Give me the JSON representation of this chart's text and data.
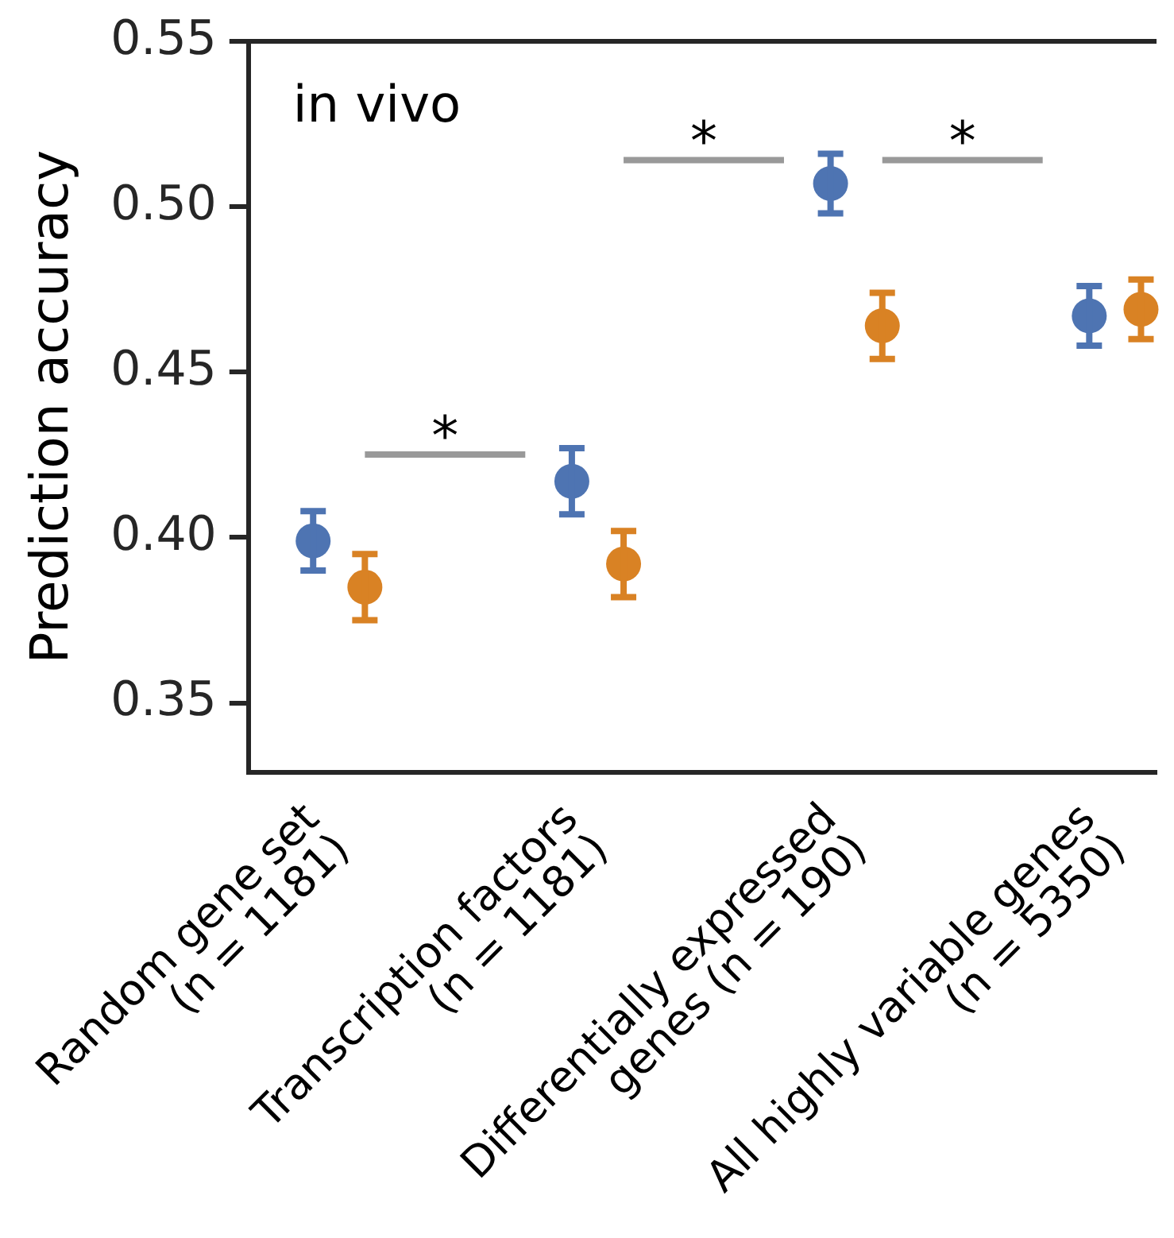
{
  "chart_data": {
    "type": "scatter",
    "ylabel": "Prediction accuracy",
    "categories": [
      "Random gene set\n(n = 1181)",
      "Transcription factors\n(n = 1181)",
      "Differentially expressed\ngenes (n = 190)",
      "All highly variable genes\n(n = 5350)"
    ],
    "series": [
      {
        "color": "#4e74b2",
        "values": [
          0.399,
          0.417,
          0.507,
          0.467
        ],
        "errors": [
          0.009,
          0.01,
          0.009,
          0.009
        ]
      },
      {
        "color": "#d98224",
        "values": [
          0.385,
          0.392,
          0.464,
          0.469
        ],
        "errors": [
          0.01,
          0.01,
          0.01,
          0.009
        ]
      }
    ],
    "ylim": [
      0.329,
      0.55
    ],
    "yticks": [
      0.35,
      {
        "value": 0.4,
        "label": "0.40"
      },
      0.45,
      {
        "value": 0.5,
        "label": "0.50"
      },
      0.55
    ],
    "annotations": [
      "in vivo",
      "*",
      "*",
      "*"
    ],
    "marker": "circle",
    "grid": false,
    "legend": false
  }
}
